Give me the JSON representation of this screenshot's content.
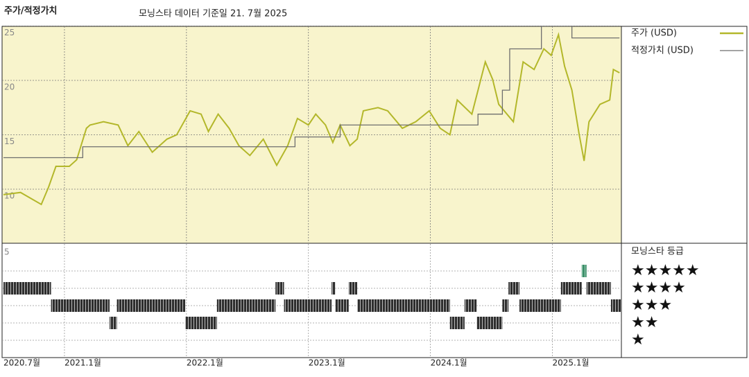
{
  "title": "주가/적정가치",
  "subtitle": "모닝스타 데이터 기준일 21. 7월 2025",
  "chart_data": [
    {
      "type": "line",
      "xlim": [
        2020.5,
        2025.56
      ],
      "ylim": [
        5,
        25
      ],
      "xticks": [
        {
          "value": 2020.5,
          "label": "2020.7월"
        },
        {
          "value": 2021.0,
          "label": "2021.1월"
        },
        {
          "value": 2022.0,
          "label": "2022.1월"
        },
        {
          "value": 2023.0,
          "label": "2023.1월"
        },
        {
          "value": 2024.0,
          "label": "2024.1월"
        },
        {
          "value": 2025.0,
          "label": "2025.1월"
        }
      ],
      "yticks": [
        10,
        15,
        20,
        25
      ],
      "grid": true,
      "background": "#f8f4cc",
      "series": [
        {
          "name": "주가 (USD)",
          "color": "#b3b72a",
          "x": [
            2020.5,
            2020.64,
            2020.81,
            2020.87,
            2020.93,
            2021.04,
            2021.1,
            2021.18,
            2021.21,
            2021.32,
            2021.44,
            2021.52,
            2021.61,
            2021.72,
            2021.84,
            2021.92,
            2022.03,
            2022.12,
            2022.18,
            2022.26,
            2022.35,
            2022.43,
            2022.52,
            2022.63,
            2022.74,
            2022.83,
            2022.91,
            2023.0,
            2023.06,
            2023.14,
            2023.2,
            2023.26,
            2023.34,
            2023.4,
            2023.45,
            2023.57,
            2023.65,
            2023.77,
            2023.88,
            2023.99,
            2024.08,
            2024.16,
            2024.22,
            2024.34,
            2024.45,
            2024.51,
            2024.56,
            2024.68,
            2024.76,
            2024.85,
            2024.93,
            2024.99,
            2025.05,
            2025.1,
            2025.16,
            2025.22,
            2025.26,
            2025.3,
            2025.39,
            2025.47,
            2025.5,
            2025.55
          ],
          "values": [
            9.5,
            9.7,
            8.6,
            10.2,
            12.1,
            12.1,
            12.7,
            15.6,
            15.9,
            16.2,
            15.9,
            14.0,
            15.3,
            13.4,
            14.6,
            15.0,
            17.2,
            16.9,
            15.3,
            16.9,
            15.6,
            14.0,
            13.1,
            14.6,
            12.2,
            14.0,
            16.5,
            15.9,
            16.9,
            15.9,
            14.3,
            15.9,
            14.0,
            14.6,
            17.2,
            17.5,
            17.2,
            15.6,
            16.2,
            17.2,
            15.6,
            15.0,
            18.2,
            16.9,
            21.7,
            20.1,
            17.8,
            16.2,
            21.7,
            21.0,
            22.9,
            22.3,
            24.2,
            21.3,
            19.1,
            15.0,
            12.6,
            16.2,
            17.8,
            18.2,
            21.0,
            20.7
          ]
        },
        {
          "name": "적정가치 (USD)",
          "color": "#6e6e6e",
          "x": [
            2020.5,
            2021.15,
            2021.15,
            2022.89,
            2022.89,
            2023.26,
            2023.26,
            2024.39,
            2024.39,
            2024.59,
            2024.59,
            2024.65,
            2024.65,
            2024.91,
            2024.91,
            2025.16,
            2025.16,
            2025.55
          ],
          "values": [
            12.9,
            12.9,
            13.9,
            13.9,
            14.8,
            14.8,
            15.9,
            15.9,
            16.9,
            16.9,
            19.1,
            19.1,
            22.9,
            22.9,
            25.0,
            25.0,
            23.9,
            23.9
          ]
        }
      ]
    },
    {
      "type": "rating",
      "title": "모닝스타 등급",
      "top_label": "5",
      "levels": [
        5,
        4,
        3,
        2,
        1
      ],
      "level_labels": [
        "★★★★★",
        "★★★★",
        "★★★",
        "★★",
        "★"
      ],
      "color": "#333333",
      "top_color": "#3d8f6a",
      "x": [
        2020.5,
        2020.89,
        2021.37,
        2021.43,
        2021.99,
        2022.25,
        2022.73,
        2022.8,
        2023.19,
        2023.22,
        2023.33,
        2023.4,
        2024.16,
        2024.28,
        2024.38,
        2024.59,
        2024.64,
        2024.73,
        2025.07,
        2025.24,
        2025.28,
        2025.48
      ],
      "values": [
        4,
        3,
        2,
        3,
        2,
        3,
        4,
        3,
        4,
        3,
        4,
        3,
        2,
        3,
        2,
        3,
        4,
        3,
        4,
        5,
        4,
        3
      ]
    }
  ]
}
